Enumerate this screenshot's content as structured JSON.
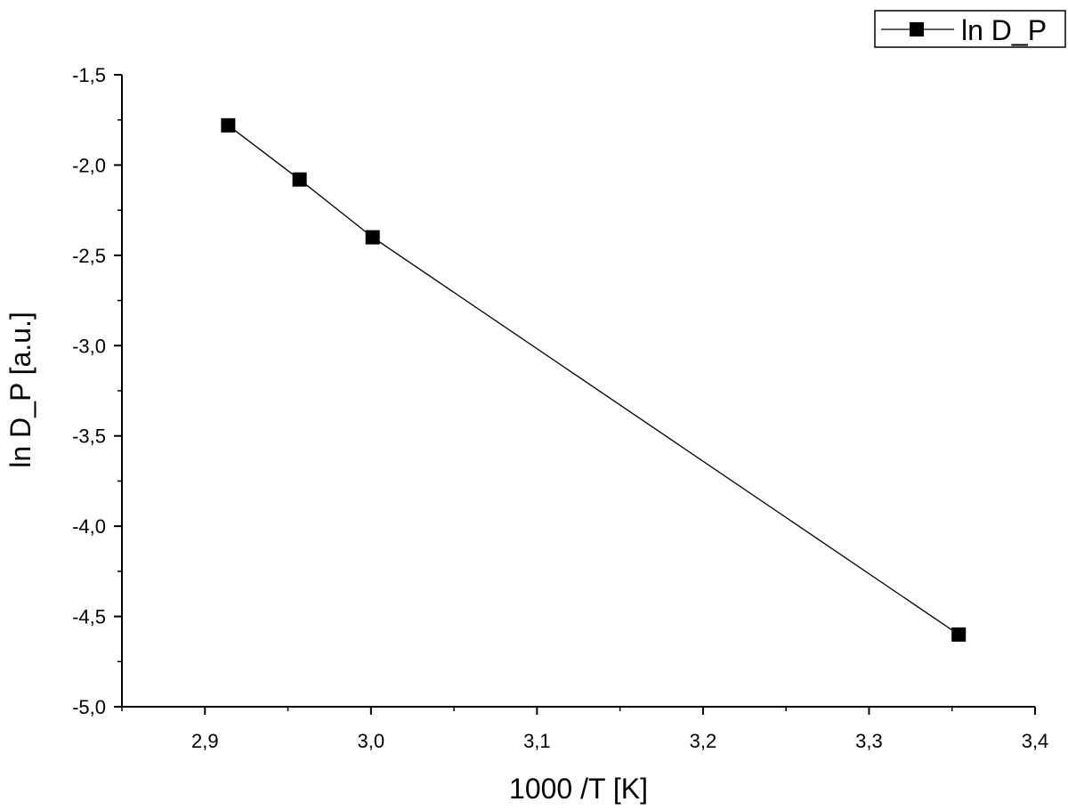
{
  "chart_data": {
    "type": "line",
    "xlabel": "1000 /T [K]",
    "ylabel": "ln D_P [a.u.]",
    "xlim": [
      2.85,
      3.4
    ],
    "ylim": [
      -5.0,
      -1.5
    ],
    "x_ticks": [
      2.9,
      3.0,
      3.1,
      3.2,
      3.3,
      3.4
    ],
    "x_tick_labels": [
      "2,9",
      "3,0",
      "3,1",
      "3,2",
      "3,3",
      "3,4"
    ],
    "y_ticks": [
      -1.5,
      -2.0,
      -2.5,
      -3.0,
      -3.5,
      -4.0,
      -4.5,
      -5.0
    ],
    "y_tick_labels": [
      "-1,5",
      "-2,0",
      "-2,5",
      "-3,0",
      "-3,5",
      "-4,0",
      "-4,5",
      "-5,0"
    ],
    "grid": false,
    "legend_position": "top-right",
    "series": [
      {
        "name": "ln D_P",
        "marker": "square",
        "color": "#000000",
        "x": [
          2.914,
          2.957,
          3.001,
          3.354
        ],
        "y": [
          -1.78,
          -2.08,
          -2.4,
          -4.6
        ]
      }
    ]
  }
}
